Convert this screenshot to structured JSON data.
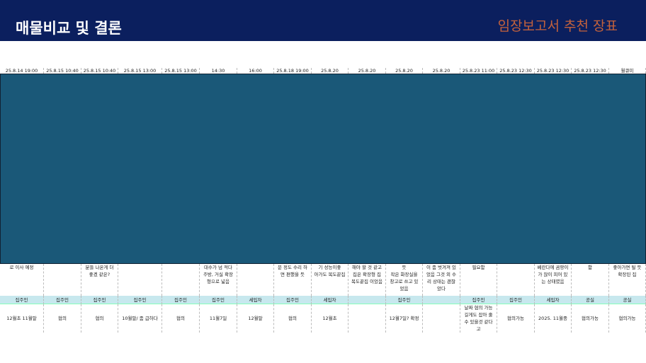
{
  "header": {
    "title": "매물비교 및 결론",
    "subtitle": "임장보고서 추천 장표"
  },
  "table": {
    "dates": [
      "25.8.14 19:00",
      "25.8.15 10:40",
      "25.8.15 10:40",
      "25.8.15 13:00",
      "25.8.15 13:00",
      "14:30",
      "16:00",
      "25.8.18 19:00",
      "25.8.20",
      "25.8.20",
      "25.8.20",
      "25.8.20",
      "25.8.23 11:00",
      "25.8.23 12:30",
      "25.8.23 12:30",
      "25.8.23 12:30",
      "월큐미"
    ],
    "notes": [
      "로 이사 예정",
      "",
      "분들 나온게 더\n좋겠 같은?",
      "",
      "",
      "대수가 넘 적다\n주방, 거실 확장\n형으로 넓음",
      "",
      "문 정도 수리 하\n면 편했을 듯",
      "기 성능이좋\n아가도 복도끝집",
      "해야 할 것 같고\n집은 확장형 집\n복도끝집 이었음",
      "듯\n작은 화장실을\n창고로 쓰고 있\n었음",
      "이 좀 벗겨져 있\n었음 그것 외 수\n리 상태는 괜찮\n았다",
      "필요함",
      "",
      "베란다에 곰팡이\n가 많이 피어 있\n는 상태였음",
      "함",
      "좋아가면 될 듯\n확장된 집"
    ],
    "owners": [
      "집주인",
      "집주인",
      "집주인",
      "집주인",
      "집주인",
      "집주인",
      "세입자",
      "집주인",
      "세입자",
      "",
      "집주인",
      "",
      "집주인",
      "집주인",
      "세입자",
      "공실",
      "공실"
    ],
    "move_in": [
      "12월초 11월말",
      "협의",
      "협의",
      "10월말/ 좀 급하다",
      "협의",
      "11월7일",
      "12월말",
      "협의",
      "12월초",
      "",
      "12월7일? 확정",
      "",
      "날짜 협의 가능\n길게도 잡아 줄\n수 있을것 같다\n고",
      "협의가능",
      "2025. 11월중",
      "협의가능",
      "협의가능"
    ]
  }
}
